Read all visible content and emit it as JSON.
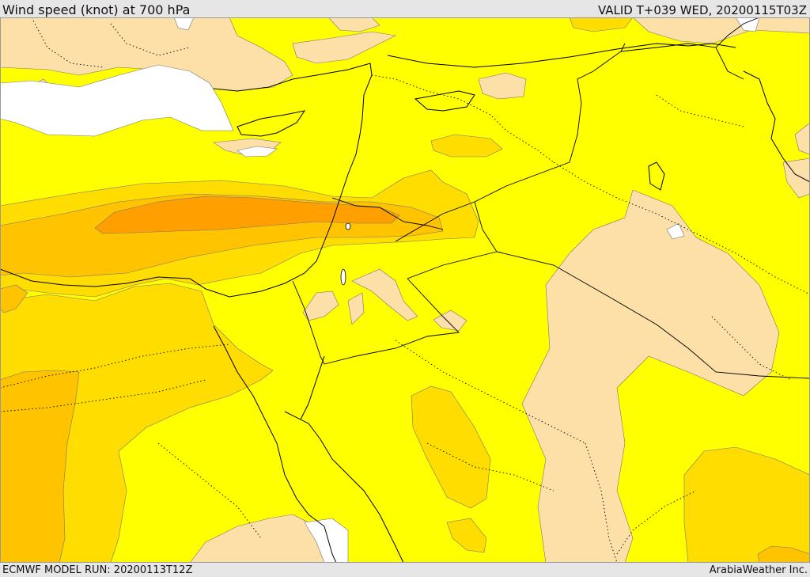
{
  "header": {
    "title": "Wind speed (knot) at 700 hPa",
    "valid": "VALID T+039 WED, 20200115T03Z"
  },
  "footer": {
    "model_run": "ECMWF MODEL RUN: 20200113T12Z",
    "credit": "ArabiaWeather Inc."
  },
  "colors": {
    "calm_white": "#ffffff",
    "light_tan": "#fde0a8",
    "yellow": "#ffff00",
    "gold": "#ffdd00",
    "amber": "#ffc300",
    "orange": "#ffa000",
    "frame_gray": "#e6e6e6"
  },
  "map": {
    "parameter": "wind speed",
    "level": "700 hPa",
    "units": "knot"
  }
}
